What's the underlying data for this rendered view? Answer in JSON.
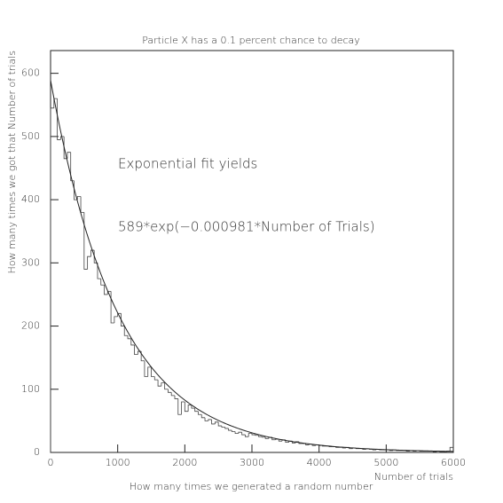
{
  "chart_data": {
    "type": "histogram",
    "title": "Particle X has a 0.1 percent chance to decay",
    "x_label": "Number of trials",
    "x_label_2": "How many times we generated a random number",
    "y_label": "How many times we got that Number of trials",
    "annotations": [
      "Exponential fit yields",
      "589*exp(−0.000981*Number of Trials)"
    ],
    "bins": [
      0,
      50,
      100,
      150,
      200,
      250,
      300,
      350,
      400,
      450,
      500,
      550,
      600,
      650,
      700,
      750,
      800,
      850,
      900,
      950,
      1000,
      1050,
      1100,
      1150,
      1200,
      1250,
      1300,
      1350,
      1400,
      1450,
      1500,
      1550,
      1600,
      1650,
      1700,
      1750,
      1800,
      1850,
      1900,
      1950,
      2000,
      2050,
      2100,
      2150,
      2200,
      2250,
      2300,
      2350,
      2400,
      2450,
      2500,
      2550,
      2600,
      2650,
      2700,
      2750,
      2800,
      2850,
      2900,
      2950,
      3000,
      3050,
      3100,
      3150,
      3200,
      3250,
      3300,
      3350,
      3400,
      3450,
      3500,
      3550,
      3600,
      3650,
      3700,
      3750,
      3800,
      3850,
      3900,
      3950,
      4000,
      4050,
      4100,
      4150,
      4200,
      4250,
      4300,
      4350,
      4400,
      4450,
      4500,
      4550,
      4600,
      4650,
      4700,
      4750,
      4800,
      4850,
      4900,
      4950,
      5000,
      5050,
      5100,
      5150,
      5200,
      5250,
      5300,
      5350,
      5400,
      5450,
      5500,
      5550,
      5600,
      5650,
      5700,
      5750,
      5800,
      5850,
      5900,
      5950,
      6000
    ],
    "counts": [
      545,
      560,
      495,
      500,
      465,
      475,
      430,
      400,
      405,
      380,
      290,
      310,
      320,
      300,
      275,
      265,
      250,
      255,
      205,
      215,
      220,
      200,
      185,
      180,
      170,
      155,
      160,
      145,
      120,
      135,
      120,
      115,
      105,
      110,
      100,
      95,
      90,
      85,
      60,
      80,
      65,
      75,
      70,
      65,
      60,
      55,
      50,
      52,
      45,
      48,
      42,
      40,
      38,
      35,
      33,
      30,
      32,
      28,
      25,
      30,
      28,
      27,
      25,
      24,
      22,
      24,
      20,
      21,
      18,
      20,
      16,
      18,
      15,
      17,
      14,
      14,
      12,
      13,
      11,
      12,
      11,
      10,
      10,
      9,
      9,
      8,
      8,
      7,
      8,
      6,
      7,
      6,
      6,
      5,
      6,
      5,
      4,
      5,
      4,
      4,
      4,
      3,
      4,
      3,
      3,
      3,
      2,
      3,
      2,
      3,
      2,
      2,
      2,
      2,
      1,
      2,
      1,
      1,
      2,
      8
    ],
    "color": "#444444",
    "fit": {
      "amplitude": 589,
      "rate": -0.000981,
      "color": "#222222"
    },
    "xlim": [
      0,
      6000
    ],
    "xticks": [
      0,
      1000,
      2000,
      3000,
      4000,
      5000,
      6000
    ],
    "ylim": [
      0,
      636
    ],
    "yticks": [
      0,
      100,
      200,
      300,
      400,
      500,
      600
    ]
  }
}
